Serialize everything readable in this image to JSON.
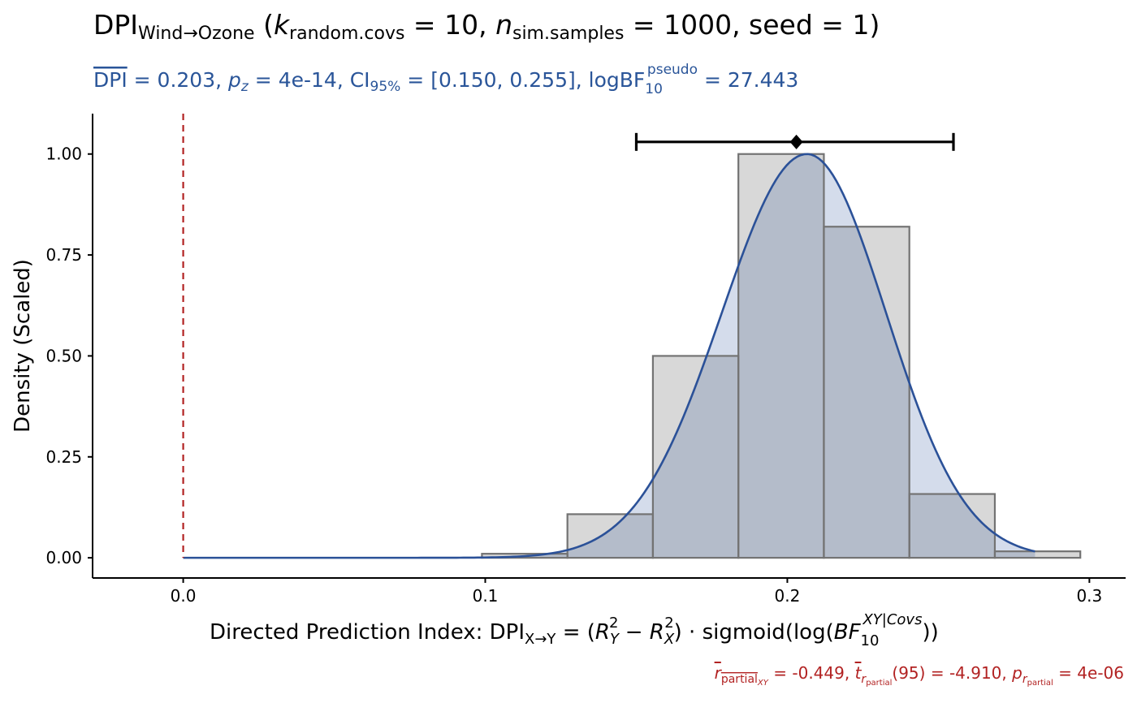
{
  "chart_data": {
    "type": "histogram",
    "title": {
      "prefix": "DPI",
      "sub": "Wind→Ozone",
      "k_label": "random.covs",
      "k_value": "10",
      "n_label": "sim.samples",
      "n_value": "1000",
      "seed_label": "seed",
      "seed_value": "1"
    },
    "subtitle": {
      "dpi_mean": "0.203",
      "p_z": "4e-14",
      "ci_label": "95%",
      "ci": "[0.150, 0.255]",
      "bf_sup": "pseudo",
      "bf_sub": "10",
      "logbf": "27.443"
    },
    "xlabel": {
      "prefix": "Directed Prediction Index: DPI",
      "sub": "X→Y",
      "bf_sup": "XY|Covs",
      "bf_sub": "10"
    },
    "ylabel": "Density (Scaled)",
    "caption": {
      "r_sub": "XY",
      "r_value": "-0.449",
      "t_df": "95",
      "t_value": "-4.910",
      "p_value": "4e-06"
    },
    "xlim": [
      -0.03,
      0.312
    ],
    "ylim": [
      -0.05,
      1.1
    ],
    "x_ticks": [
      {
        "value": 0.0,
        "label": "0.0"
      },
      {
        "value": 0.1,
        "label": "0.1"
      },
      {
        "value": 0.2,
        "label": "0.2"
      },
      {
        "value": 0.3,
        "label": "0.3"
      }
    ],
    "y_ticks": [
      {
        "value": 0.0,
        "label": "0.00"
      },
      {
        "value": 0.25,
        "label": "0.25"
      },
      {
        "value": 0.5,
        "label": "0.50"
      },
      {
        "value": 0.75,
        "label": "0.75"
      },
      {
        "value": 1.0,
        "label": "1.00"
      }
    ],
    "bins": [
      {
        "x0": -0.0143,
        "x1": 0.014,
        "value": 0.0
      },
      {
        "x0": 0.014,
        "x1": 0.0423,
        "value": 0.0
      },
      {
        "x0": 0.0423,
        "x1": 0.0706,
        "value": 0.0
      },
      {
        "x0": 0.0706,
        "x1": 0.0989,
        "value": 0.0
      },
      {
        "x0": 0.0989,
        "x1": 0.1272,
        "value": 0.01
      },
      {
        "x0": 0.1272,
        "x1": 0.1555,
        "value": 0.108
      },
      {
        "x0": 0.1555,
        "x1": 0.1838,
        "value": 0.5
      },
      {
        "x0": 0.1838,
        "x1": 0.2121,
        "value": 1.0
      },
      {
        "x0": 0.2121,
        "x1": 0.2404,
        "value": 0.82
      },
      {
        "x0": 0.2404,
        "x1": 0.2687,
        "value": 0.158
      },
      {
        "x0": 0.2687,
        "x1": 0.297,
        "value": 0.016
      }
    ],
    "density": {
      "mean": 0.2065,
      "sd_left": 0.0282,
      "sd_right": 0.0262,
      "x_start": 0.0,
      "x_end": 0.282
    },
    "mean_point": 0.203,
    "ci_bar": [
      0.15,
      0.255
    ],
    "ci_bar_y": 1.03,
    "reference_line_x": 0.0,
    "colors": {
      "subtitle": "#2a5599",
      "caption": "#b22222",
      "density_line": "#2b5198",
      "density_fill": "#d4dceb",
      "bar_fill": "#d8d8d8",
      "bar_overlap": "#b4bcca",
      "bar_edge": "#737373",
      "ref_line": "#b22222"
    }
  }
}
